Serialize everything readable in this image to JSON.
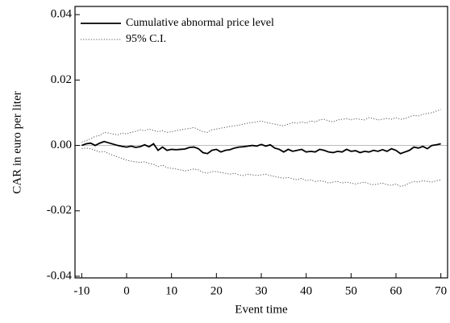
{
  "chart_data": {
    "type": "line",
    "xlabel": "Event time",
    "ylabel": "CAR in euro per liter",
    "x": [
      -10,
      -9,
      -8,
      -7,
      -6,
      -5,
      -4,
      -3,
      -2,
      -1,
      0,
      1,
      2,
      3,
      4,
      5,
      6,
      7,
      8,
      9,
      10,
      11,
      12,
      13,
      14,
      15,
      16,
      17,
      18,
      19,
      20,
      21,
      22,
      23,
      24,
      25,
      26,
      27,
      28,
      29,
      30,
      31,
      32,
      33,
      34,
      35,
      36,
      37,
      38,
      39,
      40,
      41,
      42,
      43,
      44,
      45,
      46,
      47,
      48,
      49,
      50,
      51,
      52,
      53,
      54,
      55,
      56,
      57,
      58,
      59,
      60,
      61,
      62,
      63,
      64,
      65,
      66,
      67,
      68,
      69,
      70
    ],
    "series": [
      {
        "name": "Cumulative abnormal price level",
        "color": "#000000",
        "style": "solid",
        "values": [
          0.0,
          0.0005,
          0.0007,
          0.0,
          0.0007,
          0.0012,
          0.0008,
          0.0004,
          0.0,
          -0.0003,
          -0.0005,
          -0.0002,
          -0.0006,
          -0.0004,
          0.0002,
          -0.0004,
          0.0005,
          -0.0015,
          -0.0005,
          -0.0015,
          -0.0012,
          -0.0013,
          -0.0012,
          -0.0011,
          -0.0006,
          -0.0005,
          -0.001,
          -0.0022,
          -0.0025,
          -0.0015,
          -0.0012,
          -0.002,
          -0.0015,
          -0.0013,
          -0.0008,
          -0.0005,
          -0.0004,
          -0.0002,
          0.0,
          -0.0002,
          0.0003,
          -0.0002,
          0.0002,
          -0.0008,
          -0.0012,
          -0.002,
          -0.0012,
          -0.0018,
          -0.0015,
          -0.0012,
          -0.002,
          -0.0018,
          -0.002,
          -0.0012,
          -0.0015,
          -0.002,
          -0.0022,
          -0.0018,
          -0.002,
          -0.0012,
          -0.0018,
          -0.0016,
          -0.0022,
          -0.0018,
          -0.002,
          -0.0015,
          -0.0018,
          -0.0013,
          -0.0018,
          -0.001,
          -0.0015,
          -0.0025,
          -0.002,
          -0.0015,
          -0.0005,
          -0.0008,
          -0.0003,
          -0.001,
          0.0,
          0.0002,
          0.0005
        ]
      },
      {
        "name": "95% C.I.",
        "color": "#555555",
        "style": "dotted",
        "upper": [
          0.001,
          0.0015,
          0.002,
          0.0028,
          0.003,
          0.004,
          0.0038,
          0.0035,
          0.0032,
          0.0038,
          0.0035,
          0.004,
          0.0043,
          0.0048,
          0.0045,
          0.005,
          0.0046,
          0.0042,
          0.0045,
          0.004,
          0.0042,
          0.0045,
          0.0048,
          0.005,
          0.0052,
          0.0055,
          0.0048,
          0.0042,
          0.004,
          0.0048,
          0.005,
          0.0053,
          0.0055,
          0.0058,
          0.006,
          0.0062,
          0.0065,
          0.0068,
          0.007,
          0.0072,
          0.0075,
          0.007,
          0.0068,
          0.0065,
          0.0062,
          0.006,
          0.0065,
          0.007,
          0.0068,
          0.0072,
          0.0068,
          0.0075,
          0.0072,
          0.0078,
          0.008,
          0.0075,
          0.0072,
          0.0078,
          0.008,
          0.0082,
          0.0078,
          0.0082,
          0.008,
          0.0078,
          0.0085,
          0.0082,
          0.0078,
          0.008,
          0.0083,
          0.008,
          0.0085,
          0.008,
          0.0082,
          0.0088,
          0.0092,
          0.009,
          0.0095,
          0.0098,
          0.01,
          0.0105,
          0.011
        ],
        "lower": [
          -0.001,
          -0.0008,
          -0.001,
          -0.0015,
          -0.002,
          -0.0018,
          -0.0025,
          -0.003,
          -0.0035,
          -0.004,
          -0.0045,
          -0.0048,
          -0.005,
          -0.0052,
          -0.005,
          -0.0055,
          -0.0058,
          -0.0065,
          -0.006,
          -0.0068,
          -0.007,
          -0.0072,
          -0.0075,
          -0.0078,
          -0.0075,
          -0.0072,
          -0.0075,
          -0.0082,
          -0.0085,
          -0.008,
          -0.008,
          -0.0083,
          -0.0085,
          -0.0088,
          -0.0085,
          -0.009,
          -0.0092,
          -0.0088,
          -0.009,
          -0.0092,
          -0.009,
          -0.0088,
          -0.0092,
          -0.0095,
          -0.0098,
          -0.01,
          -0.0098,
          -0.0102,
          -0.0105,
          -0.01,
          -0.0108,
          -0.0105,
          -0.011,
          -0.0108,
          -0.011,
          -0.0115,
          -0.0112,
          -0.011,
          -0.0115,
          -0.0112,
          -0.0115,
          -0.0118,
          -0.0115,
          -0.0112,
          -0.0118,
          -0.012,
          -0.0118,
          -0.0115,
          -0.012,
          -0.0122,
          -0.0118,
          -0.0125,
          -0.0122,
          -0.0115,
          -0.011,
          -0.0112,
          -0.0108,
          -0.011,
          -0.0112,
          -0.0108,
          -0.0105
        ]
      }
    ],
    "reference_line": 0,
    "xlim": [
      -11.5,
      71.5
    ],
    "ylim": [
      -0.0405,
      0.0425
    ],
    "xticks": [
      -10,
      0,
      10,
      20,
      30,
      40,
      50,
      60,
      70
    ],
    "yticks": [
      {
        "value": -0.04,
        "label": "-0.04"
      },
      {
        "value": -0.02,
        "label": "-0.02"
      },
      {
        "value": 0,
        "label": "0.00"
      },
      0.02,
      0.04
    ],
    "legend": "upper left"
  }
}
